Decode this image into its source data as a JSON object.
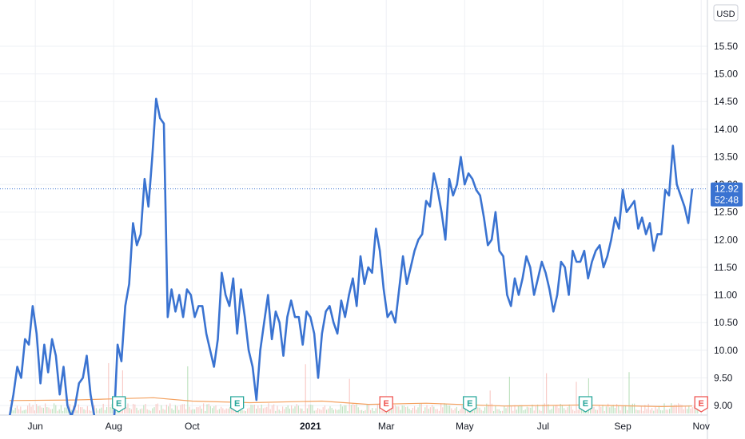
{
  "chart_data": {
    "type": "line",
    "currency": "USD",
    "ylim": [
      8.9,
      16.0
    ],
    "y_ticks": [
      "9.00",
      "9.50",
      "10.00",
      "10.50",
      "11.00",
      "11.50",
      "12.00",
      "12.50",
      "13.00",
      "13.50",
      "14.00",
      "14.50",
      "15.00",
      "15.50"
    ],
    "x_ticks": [
      {
        "label": "Jun",
        "bold": false,
        "date": "2020-06-01"
      },
      {
        "label": "Aug",
        "bold": false,
        "date": "2020-08-01"
      },
      {
        "label": "Oct",
        "bold": false,
        "date": "2020-10-01"
      },
      {
        "label": "2021",
        "bold": true,
        "date": "2021-01-01"
      },
      {
        "label": "Mar",
        "bold": false,
        "date": "2021-03-01"
      },
      {
        "label": "May",
        "bold": false,
        "date": "2021-05-01"
      },
      {
        "label": "Jul",
        "bold": false,
        "date": "2021-07-01"
      },
      {
        "label": "Sep",
        "bold": false,
        "date": "2021-09-01"
      },
      {
        "label": "Nov",
        "bold": false,
        "date": "2021-11-01"
      }
    ],
    "last_price": {
      "value": 12.92,
      "label": "12.92",
      "countdown": "52:48"
    },
    "earnings_markers": [
      {
        "label": "E",
        "date": "2020-08-05",
        "color": "#26a69a"
      },
      {
        "label": "E",
        "date": "2020-11-05",
        "color": "#26a69a"
      },
      {
        "label": "E",
        "date": "2021-03-01",
        "color": "#ef5350"
      },
      {
        "label": "E",
        "date": "2021-05-05",
        "color": "#26a69a"
      },
      {
        "label": "E",
        "date": "2021-08-03",
        "color": "#26a69a"
      },
      {
        "label": "E",
        "date": "2021-11-01",
        "color": "#ef5350"
      }
    ],
    "series": [
      {
        "color": "#3a73d1",
        "points": [
          [
            "2020-05-12",
            8.8
          ],
          [
            "2020-05-15",
            9.2
          ],
          [
            "2020-05-18",
            9.7
          ],
          [
            "2020-05-21",
            9.5
          ],
          [
            "2020-05-24",
            10.2
          ],
          [
            "2020-05-27",
            10.1
          ],
          [
            "2020-05-30",
            10.8
          ],
          [
            "2020-06-02",
            10.3
          ],
          [
            "2020-06-05",
            9.4
          ],
          [
            "2020-06-08",
            10.1
          ],
          [
            "2020-06-11",
            9.6
          ],
          [
            "2020-06-14",
            10.2
          ],
          [
            "2020-06-17",
            9.9
          ],
          [
            "2020-06-20",
            9.2
          ],
          [
            "2020-06-23",
            9.7
          ],
          [
            "2020-06-26",
            9.0
          ],
          [
            "2020-06-29",
            8.8
          ],
          [
            "2020-07-02",
            9.0
          ],
          [
            "2020-07-05",
            9.4
          ],
          [
            "2020-07-08",
            9.5
          ],
          [
            "2020-07-11",
            9.9
          ],
          [
            "2020-07-14",
            9.2
          ],
          [
            "2020-07-17",
            8.8
          ],
          [
            "2020-08-01",
            8.6
          ],
          [
            "2020-08-04",
            10.1
          ],
          [
            "2020-08-07",
            9.8
          ],
          [
            "2020-08-10",
            10.8
          ],
          [
            "2020-08-13",
            11.2
          ],
          [
            "2020-08-16",
            12.3
          ],
          [
            "2020-08-19",
            11.9
          ],
          [
            "2020-08-22",
            12.1
          ],
          [
            "2020-08-25",
            13.1
          ],
          [
            "2020-08-28",
            12.6
          ],
          [
            "2020-08-31",
            13.5
          ],
          [
            "2020-09-03",
            14.55
          ],
          [
            "2020-09-06",
            14.2
          ],
          [
            "2020-09-09",
            14.1
          ],
          [
            "2020-09-12",
            10.6
          ],
          [
            "2020-09-15",
            11.1
          ],
          [
            "2020-09-18",
            10.7
          ],
          [
            "2020-09-21",
            11.0
          ],
          [
            "2020-09-24",
            10.6
          ],
          [
            "2020-09-27",
            11.1
          ],
          [
            "2020-09-30",
            11.0
          ],
          [
            "2020-10-03",
            10.6
          ],
          [
            "2020-10-06",
            10.8
          ],
          [
            "2020-10-09",
            10.8
          ],
          [
            "2020-10-12",
            10.3
          ],
          [
            "2020-10-15",
            10.0
          ],
          [
            "2020-10-18",
            9.7
          ],
          [
            "2020-10-21",
            10.2
          ],
          [
            "2020-10-24",
            11.4
          ],
          [
            "2020-10-27",
            11.0
          ],
          [
            "2020-10-30",
            10.8
          ],
          [
            "2020-11-02",
            11.3
          ],
          [
            "2020-11-05",
            10.3
          ],
          [
            "2020-11-08",
            11.1
          ],
          [
            "2020-11-11",
            10.6
          ],
          [
            "2020-11-14",
            10.0
          ],
          [
            "2020-11-17",
            9.7
          ],
          [
            "2020-11-20",
            9.1
          ],
          [
            "2020-11-23",
            10.0
          ],
          [
            "2020-11-26",
            10.5
          ],
          [
            "2020-11-29",
            11.0
          ],
          [
            "2020-12-02",
            10.2
          ],
          [
            "2020-12-05",
            10.7
          ],
          [
            "2020-12-08",
            10.5
          ],
          [
            "2020-12-11",
            9.9
          ],
          [
            "2020-12-14",
            10.6
          ],
          [
            "2020-12-17",
            10.9
          ],
          [
            "2020-12-20",
            10.6
          ],
          [
            "2020-12-23",
            10.6
          ],
          [
            "2020-12-26",
            10.1
          ],
          [
            "2020-12-29",
            10.7
          ],
          [
            "2021-01-01",
            10.6
          ],
          [
            "2021-01-04",
            10.3
          ],
          [
            "2021-01-07",
            9.5
          ],
          [
            "2021-01-10",
            10.3
          ],
          [
            "2021-01-13",
            10.7
          ],
          [
            "2021-01-16",
            10.8
          ],
          [
            "2021-01-19",
            10.5
          ],
          [
            "2021-01-22",
            10.3
          ],
          [
            "2021-01-25",
            10.9
          ],
          [
            "2021-01-28",
            10.6
          ],
          [
            "2021-01-31",
            11.0
          ],
          [
            "2021-02-03",
            11.3
          ],
          [
            "2021-02-06",
            10.8
          ],
          [
            "2021-02-09",
            11.7
          ],
          [
            "2021-02-12",
            11.2
          ],
          [
            "2021-02-15",
            11.5
          ],
          [
            "2021-02-18",
            11.4
          ],
          [
            "2021-02-21",
            12.2
          ],
          [
            "2021-02-24",
            11.8
          ],
          [
            "2021-02-27",
            11.1
          ],
          [
            "2021-03-02",
            10.6
          ],
          [
            "2021-03-05",
            10.7
          ],
          [
            "2021-03-08",
            10.5
          ],
          [
            "2021-03-11",
            11.1
          ],
          [
            "2021-03-14",
            11.7
          ],
          [
            "2021-03-17",
            11.2
          ],
          [
            "2021-03-20",
            11.5
          ],
          [
            "2021-03-23",
            11.8
          ],
          [
            "2021-03-26",
            12.0
          ],
          [
            "2021-03-29",
            12.1
          ],
          [
            "2021-04-01",
            12.7
          ],
          [
            "2021-04-04",
            12.6
          ],
          [
            "2021-04-07",
            13.2
          ],
          [
            "2021-04-10",
            12.9
          ],
          [
            "2021-04-13",
            12.5
          ],
          [
            "2021-04-16",
            12.0
          ],
          [
            "2021-04-19",
            13.1
          ],
          [
            "2021-04-22",
            12.8
          ],
          [
            "2021-04-25",
            13.0
          ],
          [
            "2021-04-28",
            13.5
          ],
          [
            "2021-05-01",
            13.0
          ],
          [
            "2021-05-04",
            13.2
          ],
          [
            "2021-05-07",
            13.1
          ],
          [
            "2021-05-10",
            12.9
          ],
          [
            "2021-05-13",
            12.8
          ],
          [
            "2021-05-16",
            12.4
          ],
          [
            "2021-05-19",
            11.9
          ],
          [
            "2021-05-22",
            12.0
          ],
          [
            "2021-05-25",
            12.5
          ],
          [
            "2021-05-28",
            11.8
          ],
          [
            "2021-05-31",
            11.7
          ],
          [
            "2021-06-03",
            11.0
          ],
          [
            "2021-06-06",
            10.8
          ],
          [
            "2021-06-09",
            11.3
          ],
          [
            "2021-06-12",
            11.0
          ],
          [
            "2021-06-15",
            11.3
          ],
          [
            "2021-06-18",
            11.7
          ],
          [
            "2021-06-21",
            11.5
          ],
          [
            "2021-06-24",
            11.0
          ],
          [
            "2021-06-27",
            11.3
          ],
          [
            "2021-06-30",
            11.6
          ],
          [
            "2021-07-03",
            11.4
          ],
          [
            "2021-07-06",
            11.1
          ],
          [
            "2021-07-09",
            10.7
          ],
          [
            "2021-07-12",
            11.0
          ],
          [
            "2021-07-15",
            11.6
          ],
          [
            "2021-07-18",
            11.5
          ],
          [
            "2021-07-21",
            11.0
          ],
          [
            "2021-07-24",
            11.8
          ],
          [
            "2021-07-27",
            11.6
          ],
          [
            "2021-07-30",
            11.6
          ],
          [
            "2021-08-02",
            11.8
          ],
          [
            "2021-08-05",
            11.3
          ],
          [
            "2021-08-08",
            11.6
          ],
          [
            "2021-08-11",
            11.8
          ],
          [
            "2021-08-14",
            11.9
          ],
          [
            "2021-08-17",
            11.5
          ],
          [
            "2021-08-20",
            11.7
          ],
          [
            "2021-08-23",
            12.0
          ],
          [
            "2021-08-26",
            12.4
          ],
          [
            "2021-08-29",
            12.2
          ],
          [
            "2021-09-01",
            12.9
          ],
          [
            "2021-09-04",
            12.5
          ],
          [
            "2021-09-07",
            12.6
          ],
          [
            "2021-09-10",
            12.7
          ],
          [
            "2021-09-13",
            12.2
          ],
          [
            "2021-09-16",
            12.4
          ],
          [
            "2021-09-19",
            12.1
          ],
          [
            "2021-09-22",
            12.3
          ],
          [
            "2021-09-25",
            11.8
          ],
          [
            "2021-09-28",
            12.1
          ],
          [
            "2021-10-01",
            12.1
          ],
          [
            "2021-10-04",
            12.9
          ],
          [
            "2021-10-07",
            12.8
          ],
          [
            "2021-10-10",
            13.7
          ],
          [
            "2021-10-13",
            13.0
          ],
          [
            "2021-10-16",
            12.8
          ],
          [
            "2021-10-19",
            12.6
          ],
          [
            "2021-10-22",
            12.3
          ],
          [
            "2021-10-25",
            12.92
          ]
        ]
      }
    ],
    "volume_ma": [
      {
        "date": "2020-05-12",
        "value": 9.09
      },
      {
        "date": "2020-07-01",
        "value": 9.1
      },
      {
        "date": "2020-08-01",
        "value": 9.12
      },
      {
        "date": "2020-09-01",
        "value": 9.14
      },
      {
        "date": "2020-10-01",
        "value": 9.08
      },
      {
        "date": "2020-11-15",
        "value": 9.05
      },
      {
        "date": "2021-01-10",
        "value": 9.08
      },
      {
        "date": "2021-02-15",
        "value": 9.02
      },
      {
        "date": "2021-04-01",
        "value": 9.04
      },
      {
        "date": "2021-06-01",
        "value": 8.99
      },
      {
        "date": "2021-08-01",
        "value": 9.01
      },
      {
        "date": "2021-10-01",
        "value": 8.98
      },
      {
        "date": "2021-10-25",
        "value": 8.99
      }
    ],
    "grid": true
  }
}
